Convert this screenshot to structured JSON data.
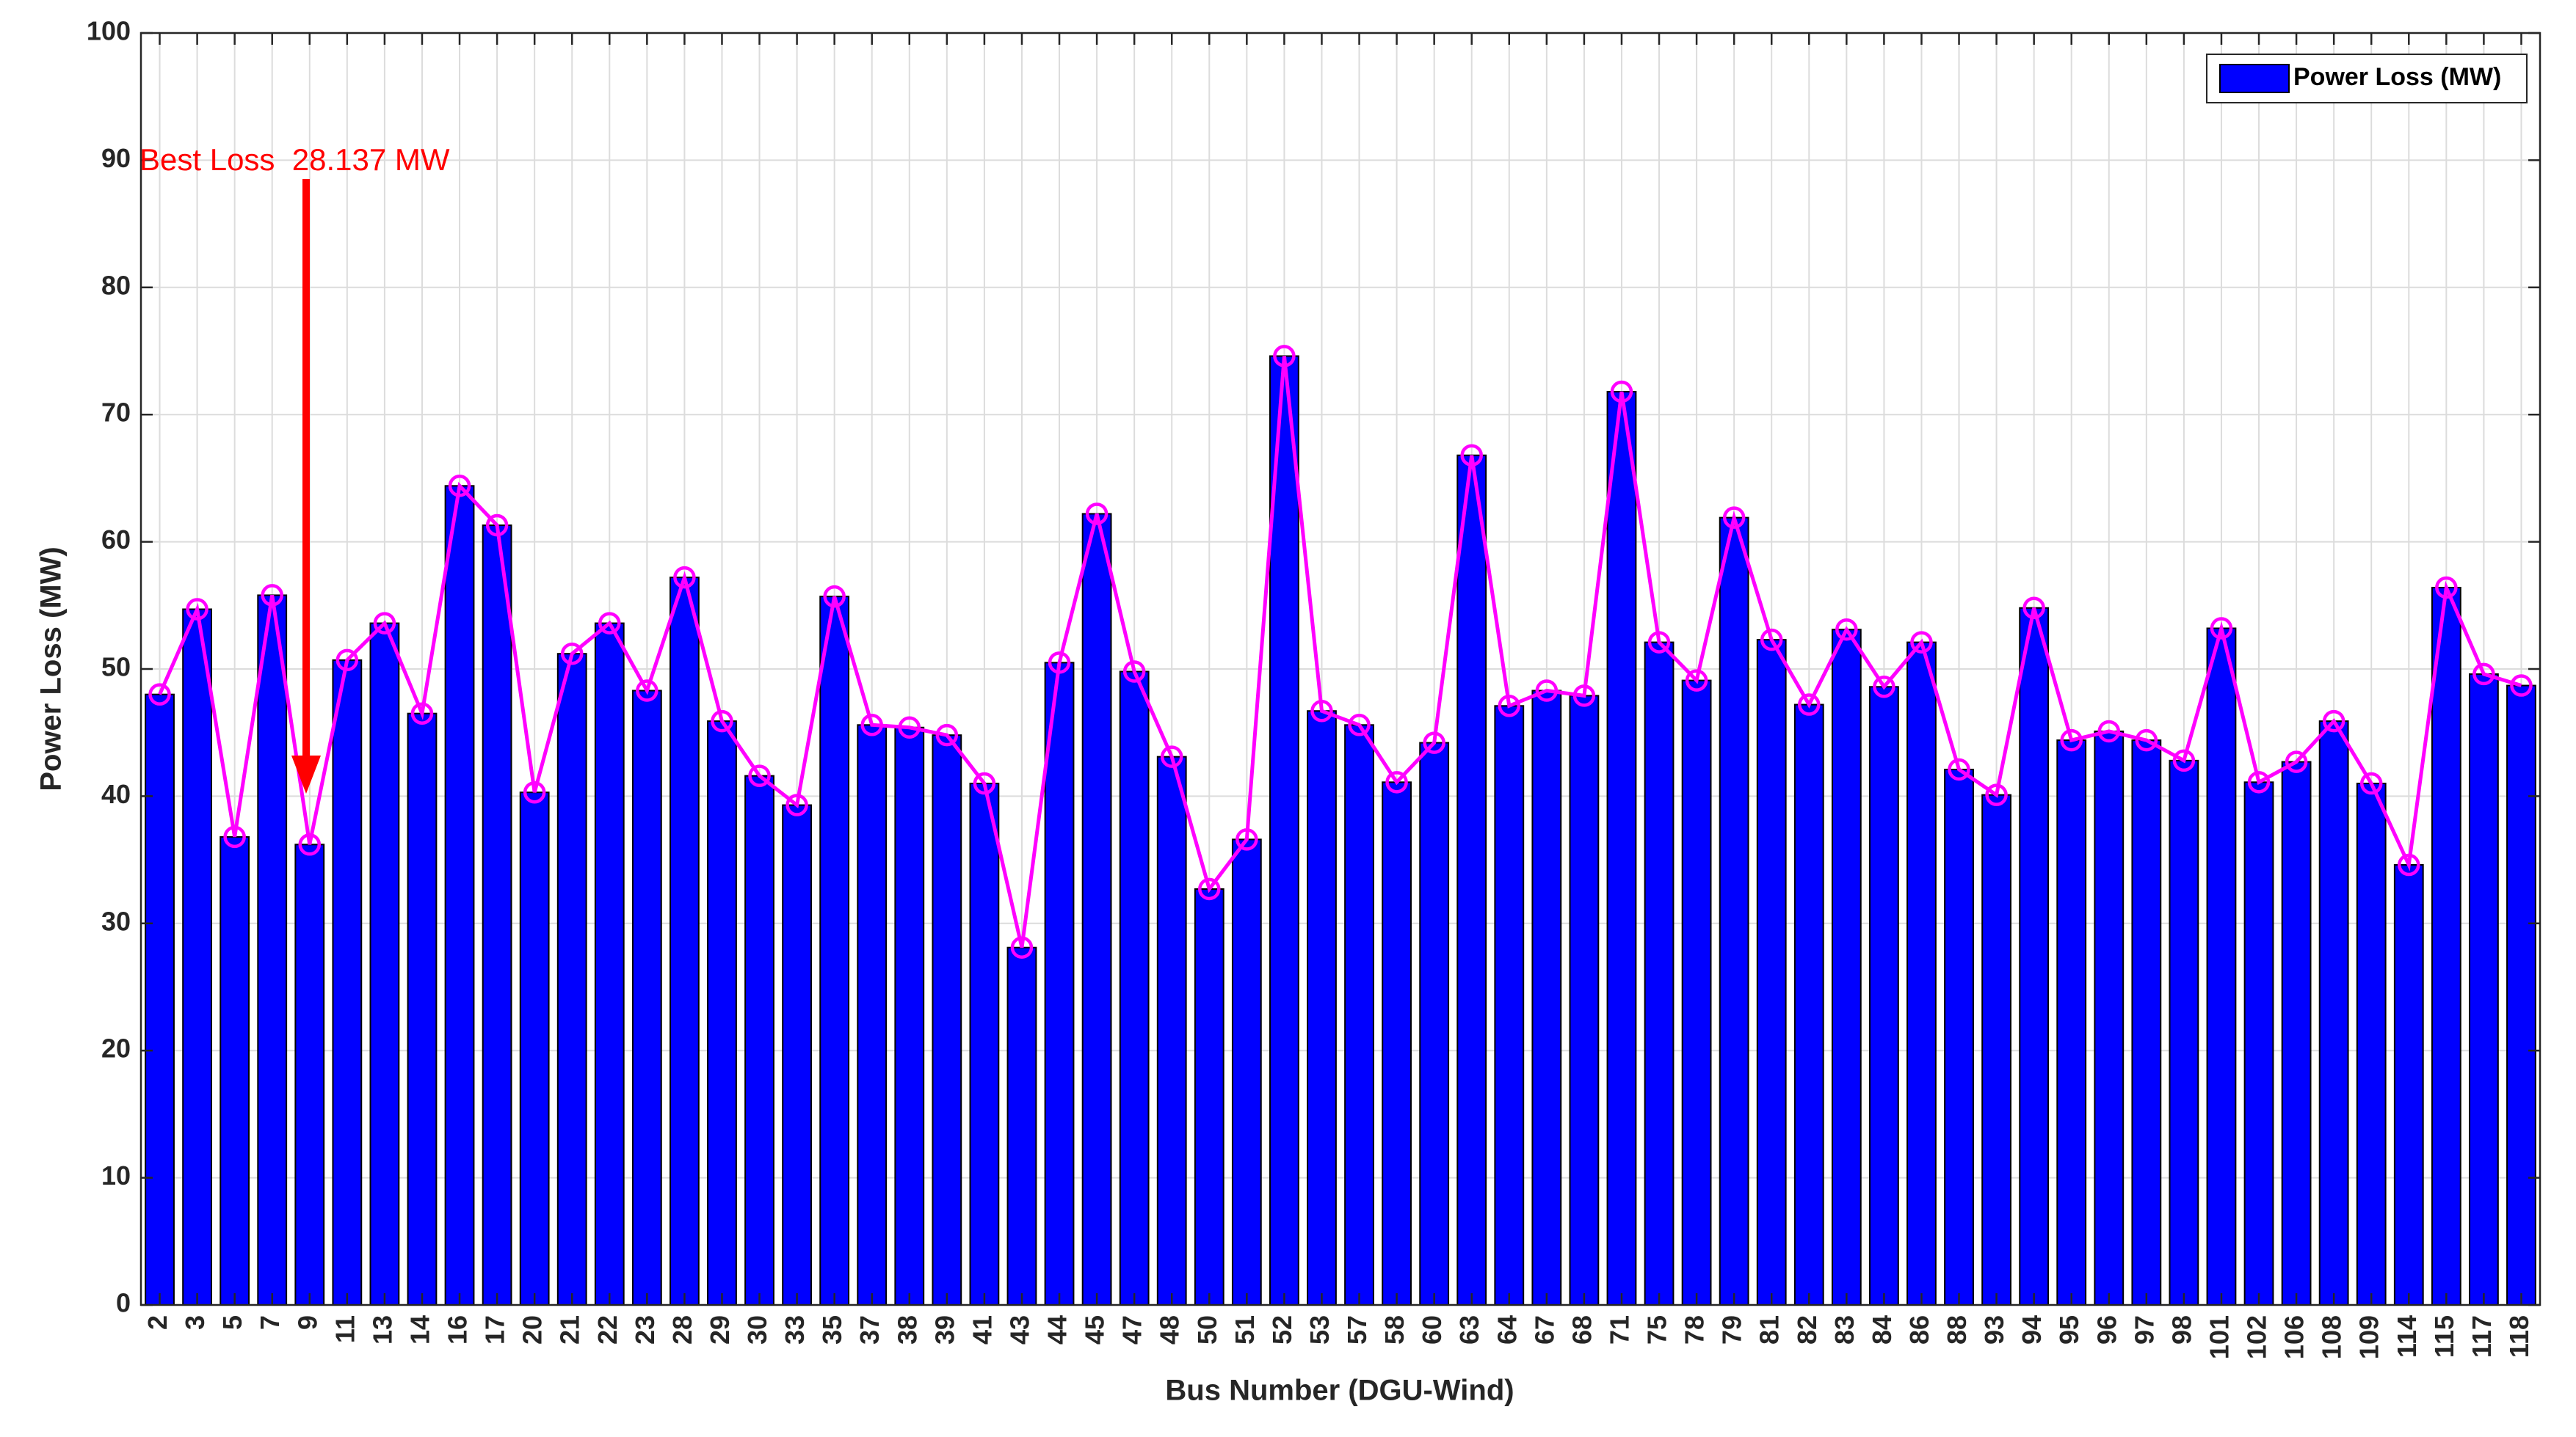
{
  "chart_data": {
    "type": "bar",
    "xlabel": "Bus Number (DGU-Wind)",
    "ylabel": "Power Loss (MW)",
    "categories": [
      "2",
      "3",
      "5",
      "7",
      "9",
      "11",
      "13",
      "14",
      "16",
      "17",
      "20",
      "21",
      "22",
      "23",
      "28",
      "29",
      "30",
      "33",
      "35",
      "37",
      "38",
      "39",
      "41",
      "43",
      "44",
      "45",
      "47",
      "48",
      "50",
      "51",
      "52",
      "53",
      "57",
      "58",
      "60",
      "63",
      "64",
      "67",
      "68",
      "71",
      "75",
      "78",
      "79",
      "81",
      "82",
      "83",
      "84",
      "86",
      "88",
      "93",
      "94",
      "95",
      "96",
      "97",
      "98",
      "101",
      "102",
      "106",
      "108",
      "109",
      "114",
      "115",
      "117",
      "118"
    ],
    "series": [
      {
        "name": "Power Loss (MW)",
        "color": "#0000ff",
        "values": [
          48,
          54.7,
          36.8,
          55.8,
          36.2,
          50.7,
          53.6,
          46.5,
          64.4,
          61.3,
          40.3,
          51.2,
          53.6,
          48.3,
          57.2,
          45.9,
          41.6,
          39.3,
          55.7,
          45.6,
          45.4,
          44.8,
          41,
          28.1,
          50.5,
          62.2,
          49.8,
          43.1,
          32.7,
          36.6,
          74.6,
          46.7,
          45.6,
          41.1,
          44.2,
          66.8,
          47.1,
          48.3,
          47.9,
          71.8,
          52.1,
          49.1,
          61.9,
          52.3,
          47.2,
          53.1,
          48.6,
          52.1,
          42.1,
          40.1,
          54.8,
          44.4,
          45.1,
          44.4,
          42.8,
          53.2,
          41.1,
          42.7,
          45.9,
          41,
          34.6,
          56.4,
          49.6,
          48.7
        ]
      }
    ],
    "line_overlay": {
      "color": "#ff00ff",
      "marker": "circle"
    },
    "annotation": {
      "text": "Best Loss  28.137 MW",
      "color": "#ff0000"
    },
    "ylim": [
      0,
      100
    ],
    "yticks": [
      0,
      10,
      20,
      30,
      40,
      50,
      60,
      70,
      80,
      90,
      100
    ],
    "grid": true,
    "legend": "upper right"
  }
}
